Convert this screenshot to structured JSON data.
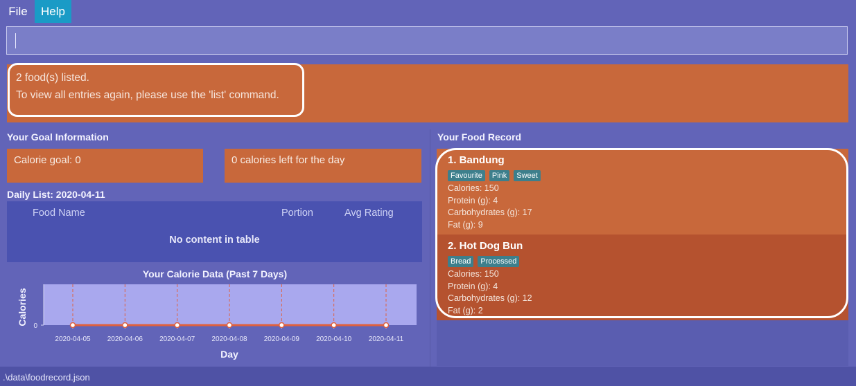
{
  "menu": {
    "file": "File",
    "help": "Help"
  },
  "command_box": {
    "value": "",
    "placeholder": ""
  },
  "result": {
    "line1": "2 food(s) listed.",
    "line2": "To view all entries again, please use the 'list' command."
  },
  "goal": {
    "title": "Your Goal Information",
    "calorie_goal": "Calorie goal: 0",
    "calories_left": "0 calories left for the day"
  },
  "daily_list": {
    "title": "Daily List: 2020-04-11",
    "columns": [
      "Food Name",
      "Portion",
      "Avg Rating"
    ],
    "empty_text": "No content in table"
  },
  "chart_data": {
    "type": "line",
    "title": "Your Calorie Data (Past 7 Days)",
    "xlabel": "Day",
    "ylabel": "Calories",
    "categories": [
      "2020-04-05",
      "2020-04-06",
      "2020-04-07",
      "2020-04-08",
      "2020-04-09",
      "2020-04-10",
      "2020-04-11"
    ],
    "values": [
      0,
      0,
      0,
      0,
      0,
      0,
      0
    ],
    "y_ticks": [
      "0"
    ],
    "grid": "vertical dashed",
    "colors": {
      "plot_bg": "#a9a8ee",
      "line": "#e0603e",
      "grid": "#e0603e"
    }
  },
  "food_record": {
    "title": "Your Food Record",
    "items": [
      {
        "title": "1.  Bandung",
        "tags": [
          "Favourite",
          "Pink",
          "Sweet"
        ],
        "calories": "Calories: 150",
        "protein": "Protein (g): 4",
        "carbs": "Carbohydrates (g): 17",
        "fat": "Fat (g): 9",
        "color": "#c8683b"
      },
      {
        "title": "2.  Hot Dog Bun",
        "tags": [
          "Bread",
          "Processed"
        ],
        "calories": "Calories: 150",
        "protein": "Protein (g): 4",
        "carbs": "Carbohydrates (g): 12",
        "fat": "Fat (g): 2",
        "color": "#b5522f"
      }
    ]
  },
  "status_bar": {
    "path": ".\\data\\foodrecord.json"
  }
}
